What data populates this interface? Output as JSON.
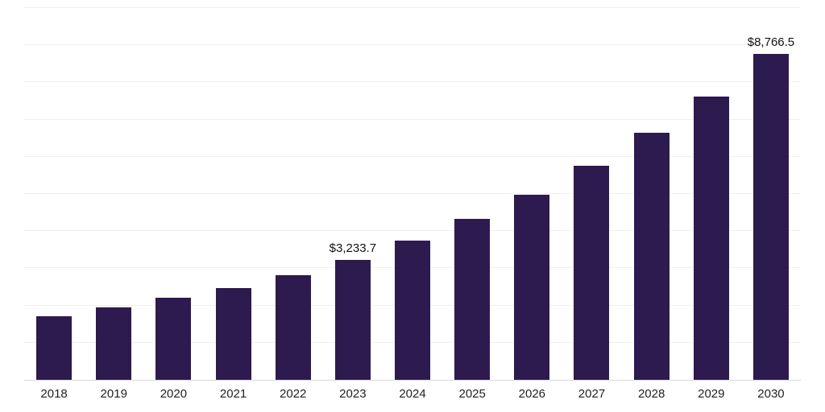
{
  "chart_data": {
    "type": "bar",
    "title": "",
    "xlabel": "",
    "ylabel": "",
    "categories": [
      "2018",
      "2019",
      "2020",
      "2021",
      "2022",
      "2023",
      "2024",
      "2025",
      "2026",
      "2027",
      "2028",
      "2029",
      "2030"
    ],
    "values": [
      1710,
      1950,
      2210,
      2470,
      2820,
      3233.7,
      3750,
      4340,
      4980,
      5760,
      6650,
      7620,
      8766.5
    ],
    "point_labels": [
      "",
      "",
      "",
      "",
      "",
      "$3,233.7",
      "",
      "",
      "",
      "",
      "",
      "",
      "$8,766.5"
    ],
    "ylim": [
      0,
      10000
    ],
    "grid_step": 1000,
    "grid": "horizontal",
    "legend": "none",
    "bar_color": "#2d1a4e",
    "background_color": "#ffffff",
    "grid_color": "#f0f0f0",
    "axis_line_color": "#d9d9d9",
    "label_color": "#111111",
    "tick_label_color": "#222222"
  }
}
